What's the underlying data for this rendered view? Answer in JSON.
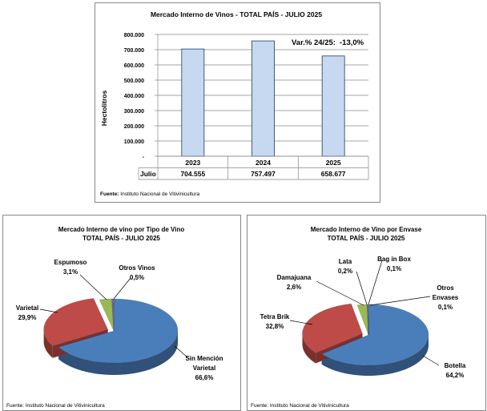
{
  "chart_data": [
    {
      "type": "bar",
      "title": "Mercado Interno de Vinos  - TOTAL PAÍS  - JULIO 2025",
      "ylabel": "Hectolitros",
      "xlabel": "",
      "ylim": [
        0,
        800000
      ],
      "yticks": [
        "-",
        "100.000",
        "200.000",
        "300.000",
        "400.000",
        "500.000",
        "600.000",
        "700.000",
        "800.000"
      ],
      "categories": [
        "2023",
        "2024",
        "2025"
      ],
      "series": [
        {
          "name": "Julio",
          "values": [
            704555,
            757497,
            658677
          ],
          "labels": [
            "704.555",
            "757.497",
            "658.677"
          ]
        }
      ],
      "annotation": {
        "label": "Var.% 24/25:",
        "value": "-13,0%"
      },
      "source_label": "Fuente:",
      "source": "Instituto Nacional de Vitivinicultura",
      "grid": true,
      "colors": {
        "bar": "#c6d9f1",
        "bar_border": "#1f3a5f",
        "var": "#ff0000"
      }
    },
    {
      "type": "pie",
      "title": [
        "Mercado Interno de vino por Tipo de Vino",
        "TOTAL PAÍS - JULIO 2025"
      ],
      "slices": [
        {
          "label": [
            "Sin Mención",
            "Varietal"
          ],
          "value": 66.6,
          "text": "66,6%",
          "color": "#4a7ebb"
        },
        {
          "label": [
            "Varietal"
          ],
          "value": 29.9,
          "text": "29,9%",
          "color": "#be4b48"
        },
        {
          "label": [
            "Espumoso"
          ],
          "value": 3.1,
          "text": "3,1%",
          "color": "#98b954"
        },
        {
          "label": [
            "Otros Vinos"
          ],
          "value": 0.5,
          "text": "0,5%",
          "color": "#7d60a0"
        }
      ],
      "source": "Fuente: Instituto Nacional de Vitivinicultura"
    },
    {
      "type": "pie",
      "title": [
        "Mercado Interno de Vino por Envase",
        "TOTAL PAÍS - JULIO 2025"
      ],
      "slices": [
        {
          "label": [
            "Botella"
          ],
          "value": 64.2,
          "text": "64,2%",
          "color": "#4a7ebb"
        },
        {
          "label": [
            "Tetra Brik"
          ],
          "value": 32.8,
          "text": "32,8%",
          "color": "#be4b48"
        },
        {
          "label": [
            "Damajuana"
          ],
          "value": 2.6,
          "text": "2,6%",
          "color": "#98b954"
        },
        {
          "label": [
            "Lata"
          ],
          "value": 0.2,
          "text": "0,2%",
          "color": "#7d60a0"
        },
        {
          "label": [
            "Bag in Box"
          ],
          "value": 0.1,
          "text": "0,1%",
          "color": "#4bacc6"
        },
        {
          "label": [
            "Otros",
            "Envases"
          ],
          "value": 0.1,
          "text": "0,1%",
          "color": "#f79646"
        }
      ],
      "source": "Fuente: Instituto Nacional de Vitivinicultura"
    }
  ]
}
